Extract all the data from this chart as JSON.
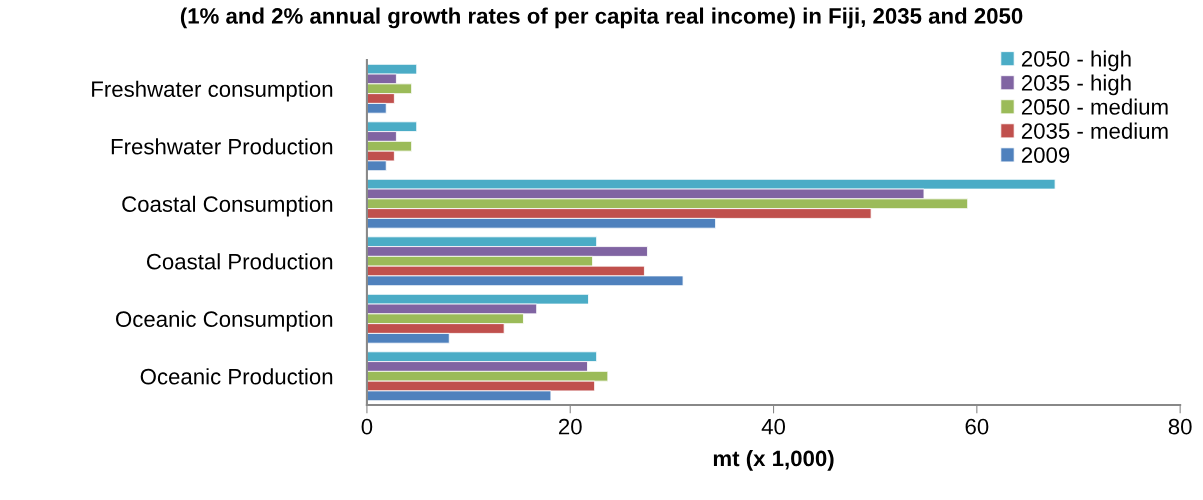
{
  "chart_data": {
    "type": "bar",
    "orientation": "horizontal",
    "title": "(1% and 2% annual growth rates of per capita real income) in Fiji, 2035 and 2050",
    "xlabel": "mt (x 1,000)",
    "categories": [
      "Freshwater consumption",
      "Freshwater Production",
      "Coastal Consumption",
      "Coastal Production",
      "Oceanic Consumption",
      "Oceanic Production"
    ],
    "series": [
      {
        "name": "2050 - high",
        "color": "#4bacc6",
        "values": [
          4.9,
          4.9,
          67.7,
          22.6,
          21.8,
          22.6
        ]
      },
      {
        "name": "2035 - high",
        "color": "#8064a2",
        "values": [
          2.9,
          2.9,
          54.8,
          27.6,
          16.7,
          21.7
        ]
      },
      {
        "name": "2050 - medium",
        "color": "#9bbb59",
        "values": [
          4.4,
          4.4,
          59.1,
          22.2,
          15.4,
          23.7
        ]
      },
      {
        "name": "2035 - medium",
        "color": "#c0504d",
        "values": [
          2.7,
          2.7,
          49.6,
          27.3,
          13.5,
          22.4
        ]
      },
      {
        "name": "2009",
        "color": "#4f81bd",
        "values": [
          1.9,
          1.9,
          34.3,
          31.1,
          8.1,
          18.1
        ]
      }
    ],
    "xlim": [
      0,
      80
    ],
    "xticks": [
      0,
      20,
      40,
      60,
      80
    ],
    "grid": false,
    "legend": "top right"
  }
}
